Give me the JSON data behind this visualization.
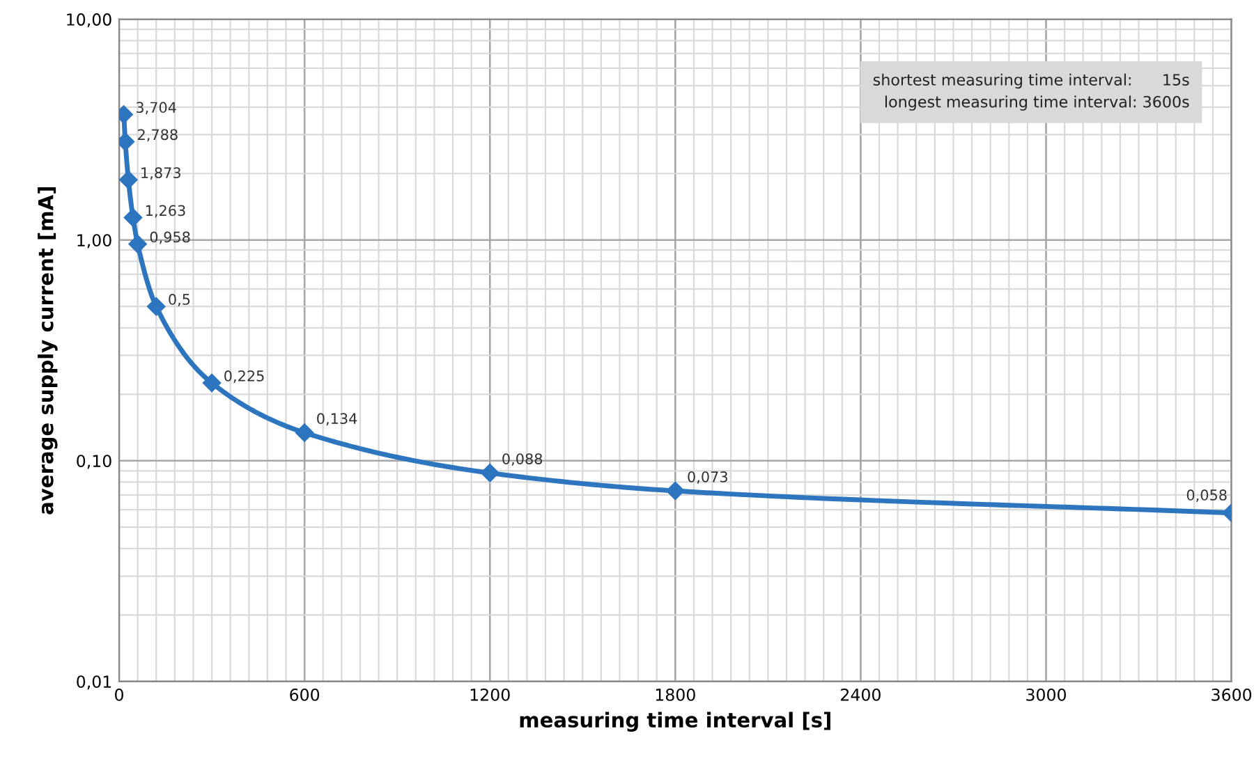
{
  "chart_data": {
    "type": "line",
    "xlabel": "measuring time interval [s]",
    "ylabel": "average supply current [mA]",
    "x": [
      15,
      20,
      30,
      45,
      60,
      120,
      300,
      600,
      1200,
      1800,
      3600
    ],
    "series": [
      {
        "color": "#2e75c0",
        "values": [
          3.704,
          2.788,
          1.873,
          1.263,
          0.958,
          0.5,
          0.225,
          0.134,
          0.088,
          0.073,
          0.058
        ],
        "value_labels": [
          "3,704",
          "2,788",
          "1,873",
          "1,263",
          "0,958",
          "0,5",
          "0,225",
          "0,134",
          "0,088",
          "0,073",
          "0,058"
        ]
      }
    ],
    "log": "y",
    "xlim": [
      0,
      3600
    ],
    "xticks": [
      0,
      600,
      1200,
      1800,
      2400,
      3000,
      3600
    ],
    "ylim": [
      0.01,
      10
    ],
    "yticks": [
      {
        "value": 0.01,
        "label": "0,01"
      },
      {
        "value": 0.1,
        "label": "0,10"
      },
      {
        "value": 1,
        "label": "1,00"
      },
      {
        "value": 10,
        "label": "10,00"
      }
    ],
    "grid": true,
    "marker": "diamond",
    "line_style": "solid",
    "legend": false,
    "annotations": [
      "shortest measuring time interval:      15s",
      "longest measuring time interval: 3600s"
    ]
  }
}
